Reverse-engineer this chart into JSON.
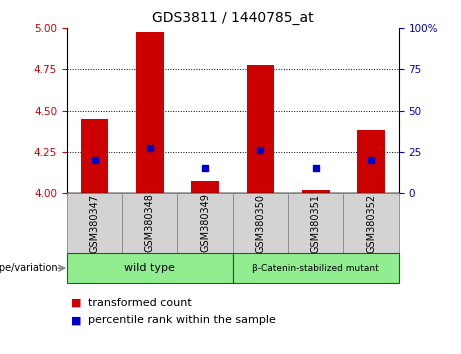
{
  "title": "GDS3811 / 1440785_at",
  "samples": [
    "GSM380347",
    "GSM380348",
    "GSM380349",
    "GSM380350",
    "GSM380351",
    "GSM380352"
  ],
  "transformed_counts": [
    4.45,
    4.98,
    4.07,
    4.78,
    4.02,
    4.38
  ],
  "percentile_ranks": [
    20,
    27,
    15,
    26,
    15,
    20
  ],
  "ylim_left": [
    4.0,
    5.0
  ],
  "ylim_right": [
    0,
    100
  ],
  "yticks_left": [
    4.0,
    4.25,
    4.5,
    4.75,
    5.0
  ],
  "yticks_right": [
    0,
    25,
    50,
    75,
    100
  ],
  "grid_vals": [
    4.25,
    4.5,
    4.75
  ],
  "bar_color": "#cc0000",
  "marker_color": "#0000cc",
  "bar_bottom": 4.0,
  "bar_width": 0.5,
  "group_wt_label": "wild type",
  "group_bc_label": "β-Catenin-stabilized mutant",
  "group_box_color": "#90ee90",
  "group_box_edge": "#444444",
  "sample_box_color": "#d3d3d3",
  "sample_box_edge": "#888888",
  "legend_red_label": "transformed count",
  "legend_blue_label": "percentile rank within the sample",
  "genotype_label": "genotype/variation",
  "title_fontsize": 10,
  "tick_fontsize": 7.5,
  "sample_fontsize": 7,
  "group_fontsize": 8,
  "legend_fontsize": 8
}
